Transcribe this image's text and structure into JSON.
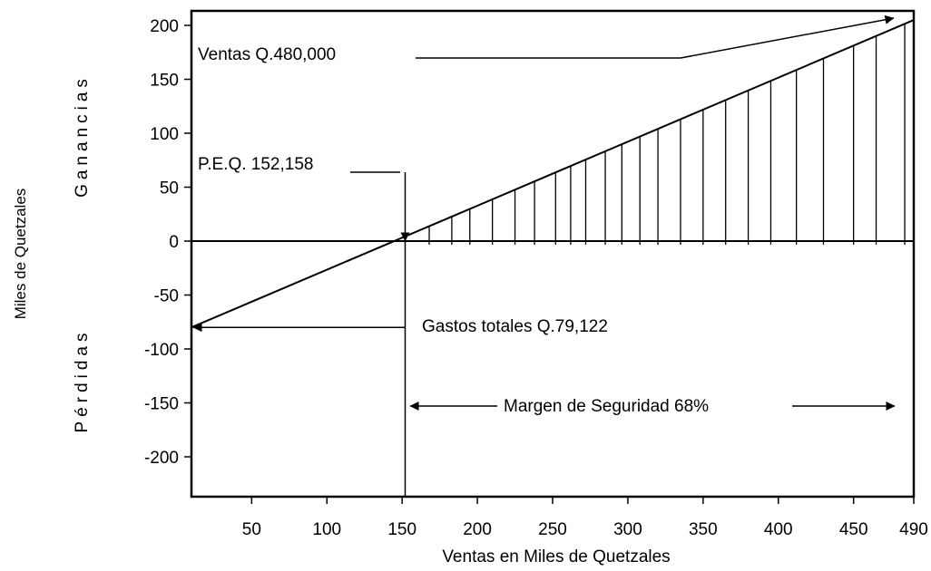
{
  "chart_data": {
    "type": "line",
    "title": "",
    "xlabel": "Ventas en Miles de Quetzales",
    "ylabel": "Miles de Quetzales",
    "xlim": [
      10,
      490
    ],
    "ylim": [
      -240,
      210
    ],
    "x_ticks": [
      {
        "value": 50,
        "label": "50"
      },
      {
        "value": 100,
        "label": "100"
      },
      {
        "value": 150,
        "label": "150"
      },
      {
        "value": 200,
        "label": "200"
      },
      {
        "value": 250,
        "label": "250"
      },
      {
        "value": 300,
        "label": "300"
      },
      {
        "value": 350,
        "label": "350"
      },
      {
        "value": 400,
        "label": "400"
      },
      {
        "value": 450,
        "label": "450"
      },
      {
        "value": 490,
        "label": "490"
      }
    ],
    "y_ticks": [
      {
        "value": 200,
        "label": "200"
      },
      {
        "value": 150,
        "label": "150"
      },
      {
        "value": 100,
        "label": "100"
      },
      {
        "value": 50,
        "label": "50"
      },
      {
        "value": 0,
        "label": "0"
      },
      {
        "value": -50,
        "label": "-50"
      },
      {
        "value": -100,
        "label": "-100"
      },
      {
        "value": -150,
        "label": "-150"
      },
      {
        "value": -200,
        "label": "-200"
      }
    ],
    "grid": false,
    "profit_line": {
      "x": [
        10,
        490
      ],
      "y": [
        -80,
        205
      ]
    },
    "zero_line": 0,
    "profit_hatch_x": [
      168,
      183,
      195,
      210,
      225,
      238,
      252,
      262,
      272,
      285,
      296,
      308,
      320,
      335,
      350,
      365,
      380,
      395,
      412,
      430,
      450,
      465,
      484
    ],
    "side_labels": {
      "top": "Ganancias",
      "bottom": "Pérdidas"
    },
    "annotations": {
      "ventas": "Ventas Q.480,000",
      "peq": "P.E.Q. 152,158",
      "gastos": "Gastos totales Q.79,122",
      "margen": "Margen de Seguridad 68%"
    },
    "breakeven_x": 152
  }
}
